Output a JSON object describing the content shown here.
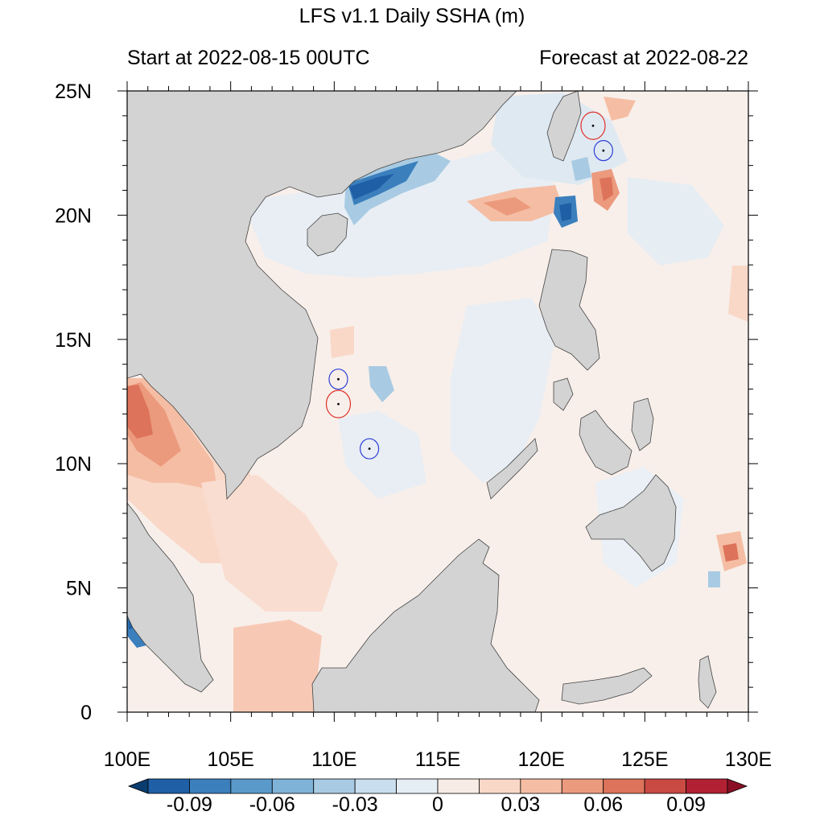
{
  "map": {
    "title": "LFS v1.1 Daily SSHA (m)",
    "subtitle_left": "Start at 2022-08-15 00UTC",
    "subtitle_right": "Forecast at 2022-08-22",
    "lon_range": [
      100,
      130
    ],
    "lat_range": [
      0,
      25
    ],
    "lon_labels": [
      "100E",
      "105E",
      "110E",
      "115E",
      "120E",
      "125E",
      "130E"
    ],
    "lat_labels": [
      "0",
      "5N",
      "10N",
      "15N",
      "20N",
      "25N"
    ],
    "land_color": "#d3d3d3"
  },
  "colorbar": {
    "colors": [
      "#0b3c6e",
      "#1f5fa6",
      "#3b7fbd",
      "#5a9acb",
      "#80b3d8",
      "#a8cbe3",
      "#c9deee",
      "#e6eef5",
      "#f7ece6",
      "#f9d8c8",
      "#f5bea4",
      "#ec9a7d",
      "#dd735a",
      "#c94a43",
      "#b12133",
      "#8a0f25"
    ],
    "tick_labels": [
      "-0.09",
      "-0.06",
      "-0.03",
      "0",
      "0.03",
      "0.06",
      "0.09"
    ]
  },
  "eddies": [
    {
      "type": "cyclonic",
      "lon": 122.5,
      "lat": 23.6,
      "color": "#e0302a"
    },
    {
      "type": "anticyclonic",
      "lon": 123.0,
      "lat": 22.6,
      "color": "#2c3fd6"
    },
    {
      "type": "anticyclonic",
      "lon": 110.2,
      "lat": 13.4,
      "color": "#2c3fd6"
    },
    {
      "type": "cyclonic",
      "lon": 110.2,
      "lat": 12.4,
      "color": "#e0302a"
    },
    {
      "type": "anticyclonic",
      "lon": 111.7,
      "lat": 10.6,
      "color": "#2c3fd6"
    }
  ]
}
